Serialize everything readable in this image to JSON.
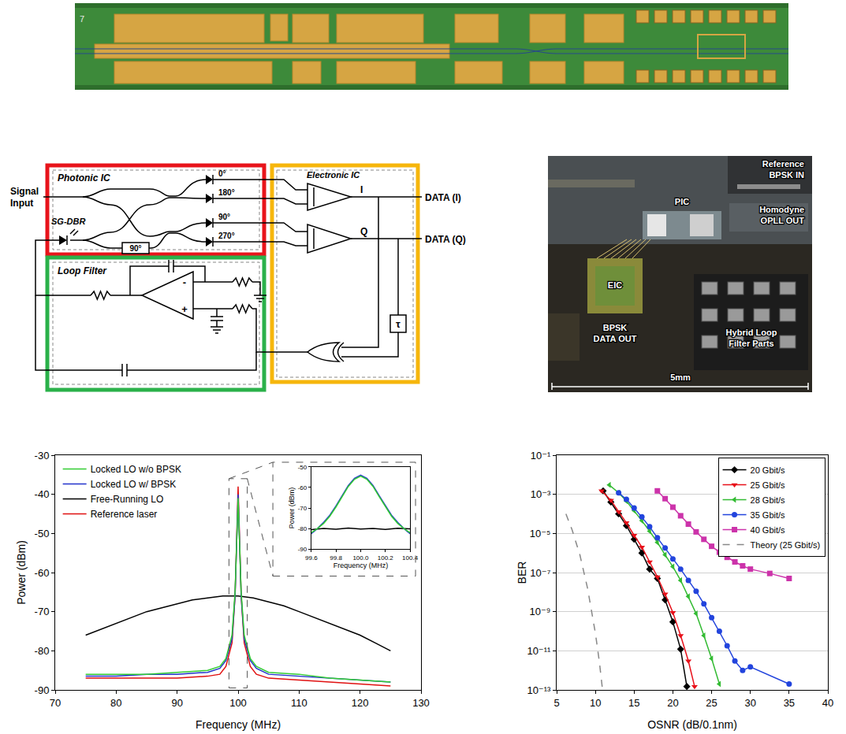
{
  "chip_photo": {
    "marking": "7"
  },
  "diagram": {
    "signal_input": "Signal Input",
    "photonic_ic": "Photonic IC",
    "laser": "SG-DBR",
    "hybrid_ports": [
      "0°",
      "180°",
      "90°",
      "270°"
    ],
    "phase_shifter": "90°",
    "electronic_ic": "Electronic IC",
    "amp_outputs": [
      "I",
      "Q"
    ],
    "data_outputs": [
      "DATA (I)",
      "DATA (Q)"
    ],
    "delay": "τ",
    "loop_filter": "Loop Filter",
    "opamp_inputs": [
      "-",
      "+"
    ]
  },
  "module_photo": {
    "labels": {
      "reference": "Reference BPSK IN",
      "pic": "PIC",
      "homodyne": "Homodyne OPLL OUT",
      "eic": "EIC",
      "data_out": "BPSK DATA OUT",
      "loop_filter": "Hybrid Loop Filter Parts"
    },
    "scale_bar": "5mm"
  },
  "chart_data": [
    {
      "type": "line",
      "x_label": "Frequency (MHz)",
      "y_label": "Power (dBm)",
      "xlim": [
        70,
        130
      ],
      "xticks": [
        70,
        80,
        90,
        100,
        110,
        120,
        130
      ],
      "ylim": [
        -90,
        -30
      ],
      "yticks": [
        -90,
        -80,
        -70,
        -60,
        -50,
        -40,
        -30
      ],
      "legend": "upper left",
      "series": [
        {
          "name": "Locked LO w/o BPSK",
          "color": "#33cc33",
          "x": [
            75,
            80,
            85,
            90,
            95,
            97,
            98,
            99,
            99.5,
            100,
            100.5,
            101,
            102,
            103,
            105,
            110,
            115,
            120,
            125
          ],
          "values": [
            -86,
            -86,
            -86,
            -85.5,
            -85,
            -84,
            -82,
            -76,
            -65,
            -41,
            -65,
            -76,
            -82,
            -84,
            -85.5,
            -86,
            -87,
            -87.5,
            -88
          ]
        },
        {
          "name": "Locked LO w/ BPSK",
          "color": "#2233cc",
          "x": [
            75,
            80,
            85,
            90,
            95,
            97,
            98,
            99,
            99.5,
            100,
            100.5,
            101,
            102,
            103,
            105,
            110,
            115,
            120,
            125
          ],
          "values": [
            -86.5,
            -86.5,
            -86,
            -86,
            -85.5,
            -84.5,
            -82.5,
            -77,
            -66,
            -40,
            -66,
            -77,
            -82.5,
            -84.5,
            -86,
            -86.5,
            -87,
            -87.5,
            -88
          ]
        },
        {
          "name": "Free-Running LO",
          "color": "#000000",
          "x": [
            75,
            77.5,
            80,
            82.5,
            85,
            87.5,
            90,
            92.5,
            95,
            97.5,
            100,
            102.5,
            105,
            107.5,
            110,
            112.5,
            115,
            117.5,
            120,
            122.5,
            125
          ],
          "values": [
            -76,
            -74.5,
            -73,
            -71.5,
            -70,
            -69,
            -68,
            -67,
            -66.5,
            -66,
            -66,
            -66.5,
            -67.5,
            -68.5,
            -70,
            -71.5,
            -73,
            -74.5,
            -76,
            -78,
            -80
          ]
        },
        {
          "name": "Reference laser",
          "color": "#e01010",
          "x": [
            75,
            80,
            85,
            90,
            95,
            97,
            98,
            99,
            99.5,
            100,
            100.5,
            101,
            102,
            103,
            105,
            110,
            115,
            120,
            125
          ],
          "values": [
            -87,
            -87,
            -87,
            -87,
            -86.5,
            -86,
            -84,
            -78,
            -66,
            -38,
            -66,
            -78,
            -84,
            -86,
            -87,
            -87.5,
            -88,
            -88.5,
            -89
          ]
        }
      ],
      "zoom_box": {
        "x": [
          98.5,
          101.5
        ],
        "y": [
          -89.5,
          -36
        ]
      },
      "inset": {
        "x_label": "Frequency (MHz)",
        "y_label": "Power (dBm)",
        "xlim": [
          99.6,
          100.4
        ],
        "xticks": [
          99.6,
          99.8,
          {
            "value": 100,
            "label": "100.0"
          },
          100.2,
          100.4
        ],
        "ylim": [
          -90,
          -50
        ],
        "yticks": [
          -90,
          -80,
          -70,
          -60,
          -50
        ],
        "series": [
          {
            "name": "Free-Running LO",
            "color": "#000000",
            "x": [
              99.6,
              99.7,
              99.8,
              99.9,
              100,
              100.1,
              100.2,
              100.3,
              100.4
            ],
            "values": [
              -80.5,
              -80,
              -80.3,
              -79.8,
              -80.2,
              -80,
              -80.4,
              -79.9,
              -80.1
            ]
          },
          {
            "name": "Locked LO w/ BPSK",
            "color": "#2233cc",
            "x": [
              99.6,
              99.65,
              99.7,
              99.75,
              99.8,
              99.85,
              99.9,
              99.95,
              100,
              100.05,
              100.1,
              100.15,
              100.2,
              100.25,
              100.3,
              100.35,
              100.4
            ],
            "values": [
              -82.5,
              -80,
              -77,
              -73.5,
              -69,
              -64,
              -59,
              -55.5,
              -54,
              -55.5,
              -59,
              -64,
              -69,
              -73.5,
              -77,
              -80,
              -82.5
            ]
          },
          {
            "name": "Locked LO w/o BPSK",
            "color": "#33cc33",
            "x": [
              99.6,
              99.65,
              99.7,
              99.75,
              99.8,
              99.85,
              99.9,
              99.95,
              100,
              100.05,
              100.1,
              100.15,
              100.2,
              100.25,
              100.3,
              100.35,
              100.4
            ],
            "values": [
              -82,
              -80,
              -77.5,
              -74,
              -69.5,
              -64.5,
              -59.5,
              -56,
              -54.5,
              -56,
              -59.5,
              -64.5,
              -69.5,
              -74,
              -77.5,
              -80,
              -82
            ]
          }
        ]
      }
    },
    {
      "type": "line",
      "x_label": "OSNR (dB/0.1nm)",
      "y_label": "BER",
      "log": "y",
      "grid": true,
      "xlim": [
        5,
        40
      ],
      "xticks": [
        5,
        10,
        15,
        20,
        25,
        30,
        35,
        40
      ],
      "ylim": [
        1e-13,
        0.1
      ],
      "yticks": [
        {
          "value": 0.1,
          "label": "10⁻¹"
        },
        {
          "value": 0.001,
          "label": "10⁻³"
        },
        {
          "value": 1e-05,
          "label": "10⁻⁵"
        },
        {
          "value": 1e-07,
          "label": "10⁻⁷"
        },
        {
          "value": 1e-09,
          "label": "10⁻⁹"
        },
        {
          "value": 1e-11,
          "label": "10⁻¹¹"
        },
        {
          "value": 1e-13,
          "label": "10⁻¹³"
        }
      ],
      "legend": "upper right",
      "series": [
        {
          "name": "20 Gbit/s",
          "color": "#000000",
          "marker": "diamond",
          "line_style": "solid",
          "x": [
            11,
            12,
            13,
            14,
            15,
            16,
            17,
            18,
            19,
            20,
            21,
            21.8
          ],
          "values": [
            0.0015,
            0.0004,
            0.0001,
            2.5e-05,
            5e-06,
            1e-06,
            1.5e-07,
            5e-08,
            4e-09,
            3e-10,
            1.2e-11,
            1.5e-13
          ]
        },
        {
          "name": "25 Gbit/s",
          "color": "#e8101a",
          "marker": "triangle-down",
          "line_style": "solid",
          "x": [
            10.8,
            12,
            13,
            14,
            15,
            16,
            17,
            18,
            19,
            20,
            21,
            22,
            22.8
          ],
          "values": [
            0.0015,
            0.0005,
            0.00013,
            3.5e-05,
            8e-06,
            2e-06,
            3.5e-07,
            6e-08,
            8e-09,
            9e-10,
            6e-11,
            3e-12,
            1.5e-13
          ]
        },
        {
          "name": "28 Gbit/s",
          "color": "#33bb33",
          "marker": "triangle-left",
          "line_style": "solid",
          "x": [
            11.8,
            13,
            14,
            15,
            16,
            17,
            18,
            19,
            20,
            21,
            22,
            23,
            24,
            25,
            26
          ],
          "values": [
            0.003,
            0.0012,
            0.00045,
            0.00015,
            4.5e-05,
            1.3e-05,
            3.5e-06,
            8e-07,
            2e-07,
            4e-08,
            6e-09,
            8e-10,
            6e-11,
            4e-12,
            2e-13
          ]
        },
        {
          "name": "35 Gbit/s",
          "color": "#2244dd",
          "marker": "circle",
          "line_style": "solid",
          "x": [
            13,
            14,
            15,
            16,
            17,
            18,
            19,
            20,
            21,
            22,
            23,
            24,
            25,
            26,
            27,
            28,
            29,
            30,
            35
          ],
          "values": [
            0.0012,
            0.00055,
            0.0002,
            7e-05,
            2.2e-05,
            6e-06,
            1.8e-06,
            5e-07,
            1.5e-07,
            4e-08,
            1.1e-08,
            2.5e-09,
            5e-10,
            1e-10,
            1.8e-11,
            3e-12,
            1e-12,
            1.5e-12,
            2e-13
          ]
        },
        {
          "name": "40 Gbit/s",
          "color": "#cc33aa",
          "marker": "square",
          "line_style": "solid",
          "x": [
            18,
            19,
            20,
            21,
            22,
            23,
            24,
            25,
            26,
            27,
            28,
            29,
            30,
            32.5,
            35
          ],
          "values": [
            0.0015,
            0.0006,
            0.00022,
            8e-05,
            3e-05,
            1.2e-05,
            5e-06,
            2.2e-06,
            1.1e-06,
            6e-07,
            3.5e-07,
            2.2e-07,
            1.5e-07,
            9e-08,
            5e-08
          ]
        },
        {
          "name": "Theory (25 Gbit/s)",
          "color": "#888888",
          "line_style": "dash",
          "x": [
            6.2,
            7,
            8,
            9,
            10,
            10.5,
            10.9
          ],
          "values": [
            0.0001,
            1.5e-05,
            8e-07,
            1.5e-08,
            8e-11,
            3e-12,
            1.2e-13
          ]
        }
      ]
    }
  ]
}
